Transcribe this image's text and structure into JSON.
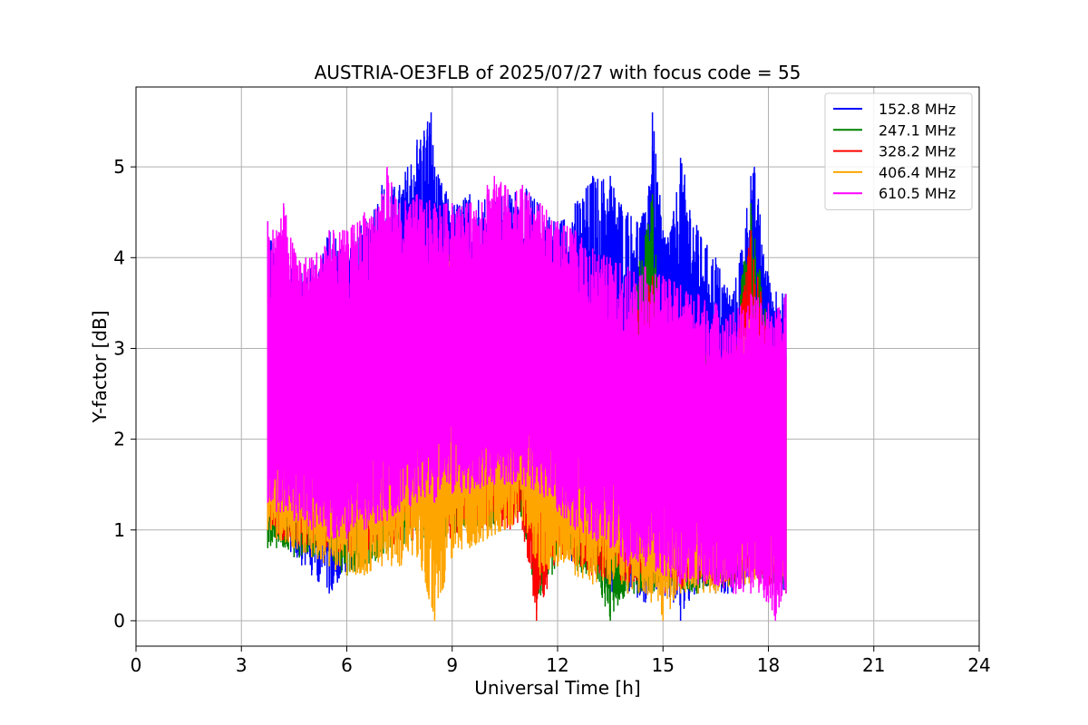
{
  "chart_data": {
    "type": "line",
    "title": "AUSTRIA-OE3FLB of 2025/07/27 with focus code = 55",
    "xlabel": "Universal Time [h]",
    "ylabel": "Y-factor [dB]",
    "xlim": [
      0,
      24
    ],
    "ylim": [
      -0.28,
      5.88
    ],
    "xticks": [
      "0",
      "3",
      "6",
      "9",
      "12",
      "15",
      "18",
      "21",
      "24"
    ],
    "yticks": [
      "0",
      "1",
      "2",
      "3",
      "4",
      "5"
    ],
    "grid": true,
    "legend_position": "top-right",
    "series": [
      {
        "name": "152.8 MHz",
        "color": "#0000ff",
        "x": [
          3.75,
          4.0,
          4.5,
          5.0,
          5.5,
          6.0,
          6.5,
          7.0,
          7.5,
          8.0,
          8.1,
          8.2,
          8.3,
          8.4,
          8.5,
          9.0,
          9.5,
          10.0,
          10.5,
          11.0,
          11.5,
          12.0,
          12.5,
          13.0,
          13.5,
          14.0,
          14.5,
          14.7,
          15.0,
          15.3,
          15.5,
          16.0,
          16.5,
          17.0,
          17.5,
          17.6,
          18.0,
          18.5
        ],
        "min": [
          1.9,
          0.9,
          0.7,
          0.5,
          0.3,
          0.5,
          0.8,
          0.9,
          1.0,
          1.2,
          1.3,
          1.3,
          1.3,
          1.2,
          1.0,
          1.0,
          1.1,
          1.1,
          1.2,
          1.2,
          1.0,
          0.8,
          0.6,
          0.5,
          0.3,
          0.3,
          0.2,
          0.3,
          0.2,
          0.2,
          0.0,
          0.3,
          0.3,
          0.3,
          0.4,
          0.5,
          0.4,
          0.3
        ],
        "max": [
          4.4,
          4.1,
          3.9,
          4.0,
          4.3,
          4.2,
          4.4,
          4.8,
          4.8,
          5.3,
          5.3,
          5.4,
          5.5,
          5.6,
          5.0,
          4.6,
          4.7,
          4.7,
          4.7,
          4.8,
          4.6,
          4.4,
          4.6,
          4.9,
          4.9,
          4.5,
          4.5,
          5.6,
          4.3,
          4.5,
          5.1,
          4.3,
          4.0,
          3.6,
          4.9,
          5.0,
          3.8,
          3.6
        ]
      },
      {
        "name": "247.1 MHz",
        "color": "#008000",
        "x": [
          3.75,
          4.0,
          4.5,
          5.0,
          5.5,
          6.0,
          7.0,
          8.0,
          9.0,
          10.0,
          11.0,
          11.4,
          12.0,
          13.0,
          13.5,
          14.0,
          14.7,
          15.0,
          16.0,
          17.0,
          17.5,
          18.0,
          18.5
        ],
        "min": [
          0.8,
          0.8,
          0.7,
          0.7,
          0.6,
          0.5,
          0.7,
          0.9,
          0.9,
          1.0,
          1.1,
          0.2,
          0.6,
          0.5,
          0.0,
          0.3,
          0.3,
          0.3,
          0.3,
          0.4,
          0.5,
          0.4,
          0.3
        ],
        "max": [
          3.8,
          3.5,
          3.3,
          3.4,
          3.6,
          3.7,
          3.9,
          4.0,
          4.1,
          4.0,
          3.9,
          3.8,
          3.6,
          3.4,
          3.2,
          3.3,
          4.7,
          3.2,
          3.0,
          3.0,
          4.6,
          3.2,
          3.0
        ]
      },
      {
        "name": "328.2 MHz",
        "color": "#ff0000",
        "x": [
          3.75,
          4.0,
          5.0,
          6.0,
          7.0,
          8.0,
          9.0,
          10.0,
          11.0,
          11.4,
          12.0,
          13.0,
          14.0,
          14.7,
          15.0,
          16.0,
          17.0,
          17.5,
          18.0,
          18.5
        ],
        "min": [
          1.0,
          0.9,
          0.8,
          0.7,
          0.8,
          0.9,
          0.9,
          1.0,
          1.0,
          0.0,
          0.7,
          0.5,
          0.4,
          0.4,
          0.3,
          0.4,
          0.4,
          0.5,
          0.4,
          0.4
        ],
        "max": [
          3.6,
          3.4,
          3.3,
          3.5,
          3.8,
          3.9,
          4.0,
          3.9,
          3.8,
          3.7,
          3.5,
          3.3,
          3.2,
          3.8,
          3.1,
          2.9,
          2.9,
          4.3,
          3.1,
          2.9
        ]
      },
      {
        "name": "406.4 MHz",
        "color": "#ffa500",
        "x": [
          3.75,
          4.0,
          4.5,
          5.0,
          5.5,
          6.0,
          6.5,
          7.0,
          7.5,
          8.0,
          8.5,
          9.0,
          9.5,
          10.0,
          10.5,
          11.0,
          11.5,
          12.0,
          12.5,
          13.0,
          13.5,
          14.0,
          14.5,
          15.0,
          15.5,
          16.0,
          16.5,
          17.0,
          17.5,
          18.0,
          18.5
        ],
        "min": [
          1.0,
          0.9,
          0.8,
          0.7,
          0.6,
          0.5,
          0.5,
          0.6,
          0.6,
          0.7,
          0.0,
          0.7,
          0.8,
          0.9,
          1.0,
          1.1,
          0.5,
          0.6,
          0.5,
          0.4,
          0.4,
          0.3,
          0.3,
          0.0,
          0.3,
          0.3,
          0.3,
          0.4,
          0.4,
          0.3,
          0.3
        ],
        "max": [
          3.5,
          3.3,
          3.1,
          3.2,
          3.4,
          3.6,
          3.8,
          3.9,
          3.9,
          4.0,
          4.0,
          4.1,
          4.1,
          4.0,
          3.9,
          3.8,
          3.7,
          3.5,
          3.4,
          3.2,
          3.1,
          3.0,
          3.0,
          2.9,
          2.9,
          2.8,
          2.8,
          2.8,
          3.4,
          2.9,
          2.8
        ]
      },
      {
        "name": "610.5 MHz",
        "color": "#ff00ff",
        "x": [
          3.75,
          4.0,
          4.2,
          4.5,
          5.0,
          5.5,
          6.0,
          6.5,
          7.0,
          7.15,
          7.5,
          8.0,
          8.5,
          9.0,
          9.5,
          10.0,
          10.2,
          10.5,
          11.0,
          11.5,
          12.0,
          12.5,
          13.0,
          13.5,
          14.0,
          14.5,
          15.0,
          15.5,
          16.0,
          16.5,
          17.0,
          17.5,
          18.0,
          18.2,
          18.5
        ],
        "min": [
          1.3,
          1.2,
          1.2,
          1.1,
          1.0,
          0.9,
          0.9,
          1.0,
          1.1,
          1.1,
          1.2,
          1.3,
          1.3,
          1.4,
          1.4,
          1.5,
          1.5,
          1.5,
          1.5,
          1.4,
          1.2,
          1.0,
          0.9,
          0.8,
          0.6,
          0.6,
          0.5,
          0.4,
          0.4,
          0.4,
          0.3,
          0.3,
          0.2,
          0.0,
          0.3
        ],
        "max": [
          4.4,
          4.3,
          4.6,
          4.1,
          4.0,
          4.3,
          4.3,
          4.5,
          4.7,
          5.0,
          4.6,
          4.7,
          4.6,
          4.6,
          4.6,
          4.8,
          4.9,
          4.8,
          4.8,
          4.6,
          4.4,
          4.3,
          4.1,
          4.0,
          3.9,
          3.9,
          3.8,
          3.7,
          3.6,
          3.5,
          3.4,
          3.6,
          3.5,
          3.4,
          3.6
        ]
      }
    ]
  }
}
